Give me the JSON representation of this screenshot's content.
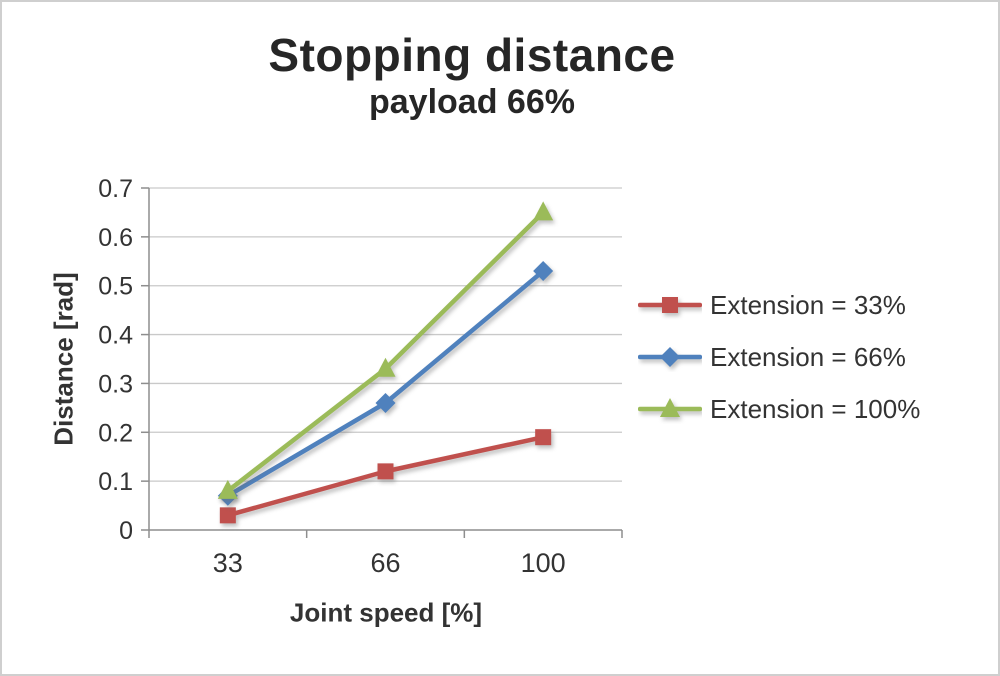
{
  "chart_data": {
    "type": "line",
    "title": "Stopping distance",
    "subtitle": "payload 66%",
    "xlabel": "Joint speed [%]",
    "ylabel": "Distance [rad]",
    "categories": [
      "33",
      "66",
      "100"
    ],
    "series": [
      {
        "name": "Extension = 33%",
        "color": "#C0504D",
        "marker": "square",
        "values": [
          0.03,
          0.12,
          0.19
        ]
      },
      {
        "name": "Extension = 66%",
        "color": "#4F81BD",
        "marker": "diamond",
        "values": [
          0.07,
          0.26,
          0.53
        ]
      },
      {
        "name": "Extension = 100%",
        "color": "#9BBB59",
        "marker": "triangle",
        "values": [
          0.08,
          0.33,
          0.65
        ]
      }
    ],
    "ylim": [
      0,
      0.7
    ],
    "yticks": [
      0,
      0.1,
      0.2,
      0.3,
      0.4,
      0.5,
      0.6,
      0.7
    ],
    "ytick_labels": [
      "0",
      "0.1",
      "0.2",
      "0.3",
      "0.4",
      "0.5",
      "0.6",
      "0.7"
    ],
    "grid": true,
    "legend_position": "right",
    "colors": {
      "grid": "#c9c9c9",
      "axis": "#8e8e8e",
      "text": "#333333",
      "title": "#262626",
      "background": "#ffffff",
      "border": "#cfcfcf"
    }
  }
}
